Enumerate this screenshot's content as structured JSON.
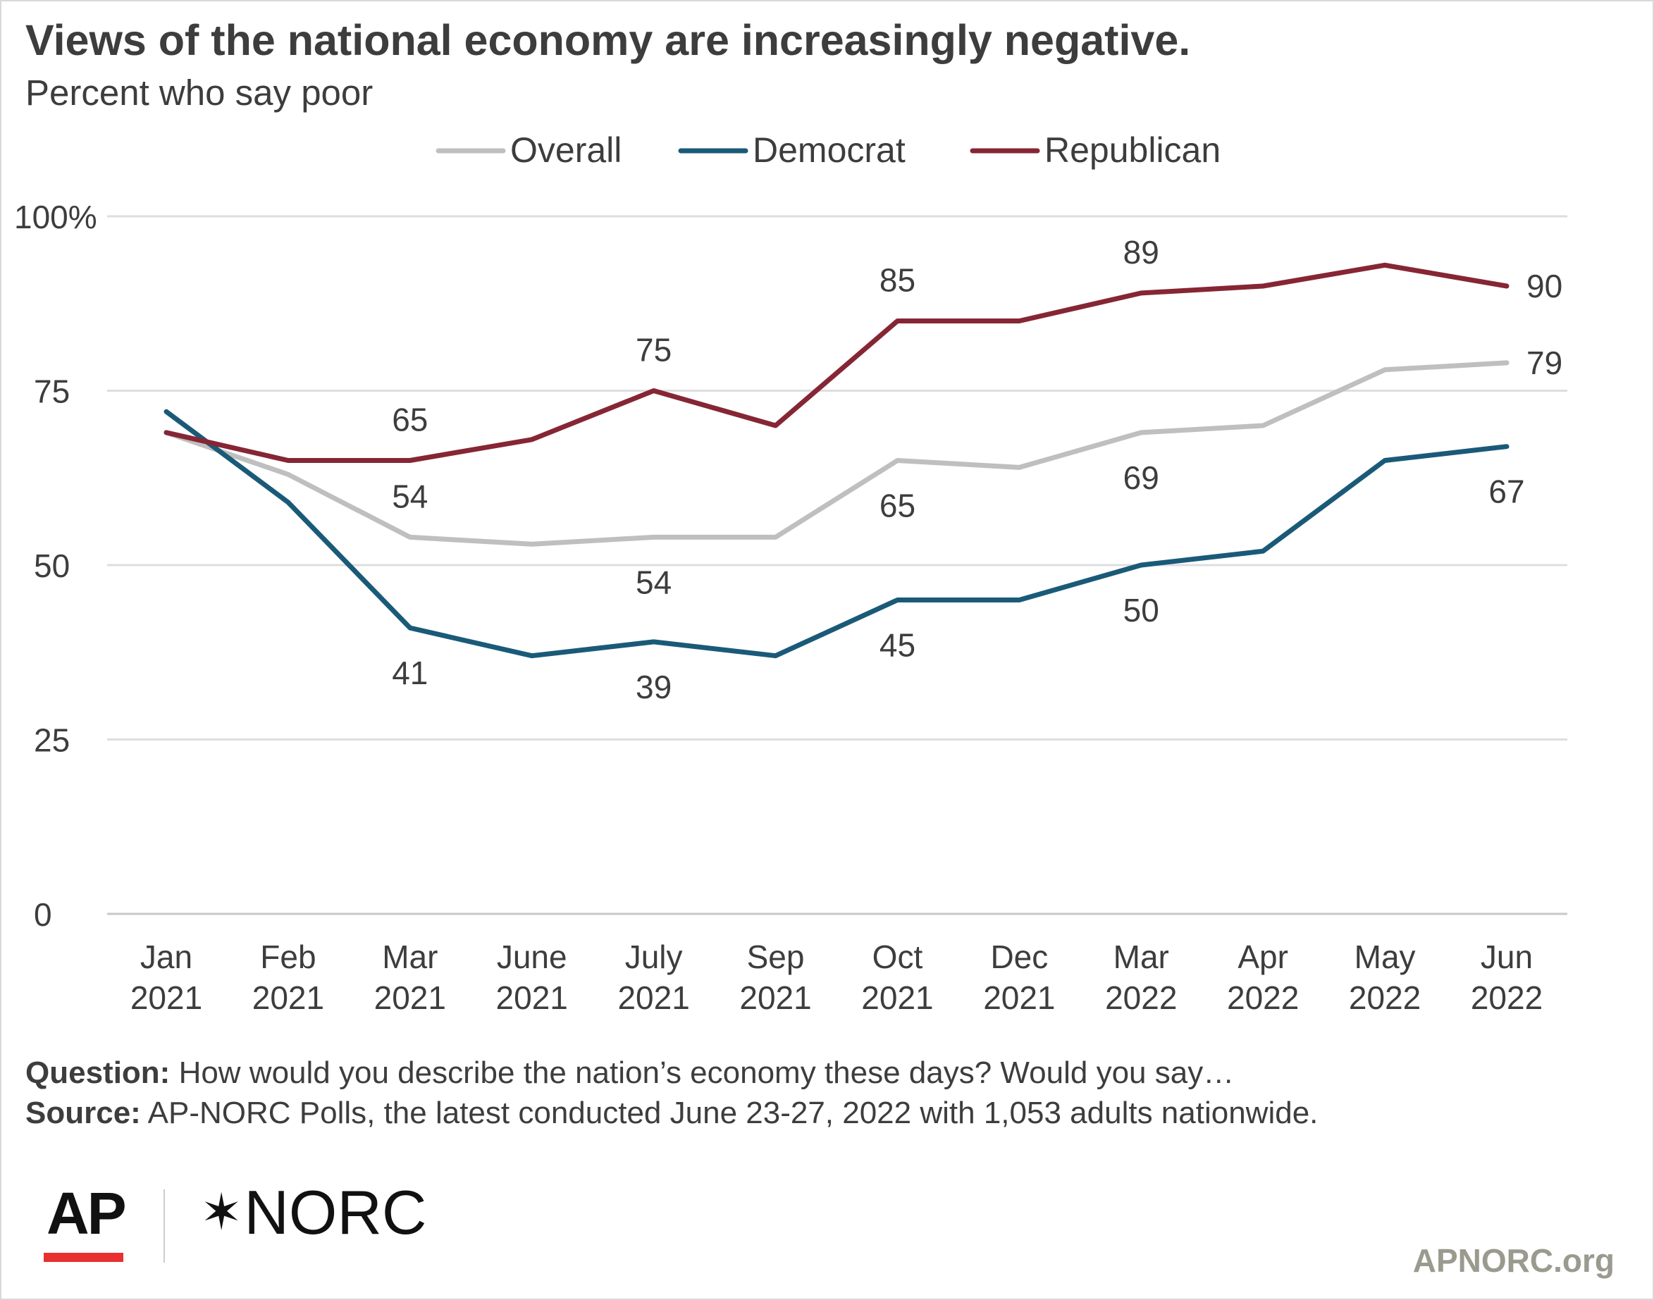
{
  "title": "Views of the national economy are increasingly negative.",
  "subtitle": "Percent who say poor",
  "question_label": "Question:",
  "question_text": "How would you describe the nation’s economy these days? Would you say…",
  "source_label": "Source:",
  "source_text": "AP-NORC Polls, the latest conducted June 23-27, 2022 with 1,053 adults nationwide.",
  "logos": {
    "ap": "AP",
    "norc_star": "✶",
    "norc": "NORC"
  },
  "site": "APNORC.org",
  "chart_data": {
    "type": "line",
    "categories": [
      [
        "Jan",
        "2021"
      ],
      [
        "Feb",
        "2021"
      ],
      [
        "Mar",
        "2021"
      ],
      [
        "June",
        "2021"
      ],
      [
        "July",
        "2021"
      ],
      [
        "Sep",
        "2021"
      ],
      [
        "Oct",
        "2021"
      ],
      [
        "Dec",
        "2021"
      ],
      [
        "Mar",
        "2022"
      ],
      [
        "Apr",
        "2022"
      ],
      [
        "May",
        "2022"
      ],
      [
        "Jun",
        "2022"
      ]
    ],
    "ylim": [
      0,
      100
    ],
    "yticks": [
      {
        "value": 100,
        "label": "100%"
      },
      {
        "value": 75,
        "label": "75"
      },
      {
        "value": 50,
        "label": "50"
      },
      {
        "value": 25,
        "label": "25"
      },
      {
        "value": 0,
        "label": "0"
      }
    ],
    "grid": true,
    "legend_position": "top-center",
    "series": [
      {
        "name": "Overall",
        "color": "#bfbfbf",
        "values": [
          69,
          63,
          54,
          53,
          54,
          54,
          65,
          64,
          69,
          70,
          78,
          79
        ],
        "labels": [
          {
            "index": 2,
            "text": "54",
            "position": "above"
          },
          {
            "index": 4,
            "text": "54",
            "position": "below"
          },
          {
            "index": 6,
            "text": "65",
            "position": "below"
          },
          {
            "index": 8,
            "text": "69",
            "position": "below"
          },
          {
            "index": 11,
            "text": "79",
            "position": "right"
          }
        ]
      },
      {
        "name": "Democrat",
        "color": "#1a5a78",
        "values": [
          72,
          59,
          41,
          37,
          39,
          37,
          45,
          45,
          50,
          52,
          65,
          67
        ],
        "labels": [
          {
            "index": 2,
            "text": "41",
            "position": "below"
          },
          {
            "index": 4,
            "text": "39",
            "position": "below"
          },
          {
            "index": 6,
            "text": "45",
            "position": "below"
          },
          {
            "index": 8,
            "text": "50",
            "position": "below"
          },
          {
            "index": 11,
            "text": "67",
            "position": "below"
          }
        ]
      },
      {
        "name": "Republican",
        "color": "#862634",
        "values": [
          69,
          65,
          65,
          68,
          75,
          70,
          85,
          85,
          89,
          90,
          93,
          90
        ],
        "labels": [
          {
            "index": 2,
            "text": "65",
            "position": "above"
          },
          {
            "index": 4,
            "text": "75",
            "position": "above"
          },
          {
            "index": 6,
            "text": "85",
            "position": "above"
          },
          {
            "index": 8,
            "text": "89",
            "position": "above"
          },
          {
            "index": 11,
            "text": "90",
            "position": "right"
          }
        ]
      }
    ]
  }
}
